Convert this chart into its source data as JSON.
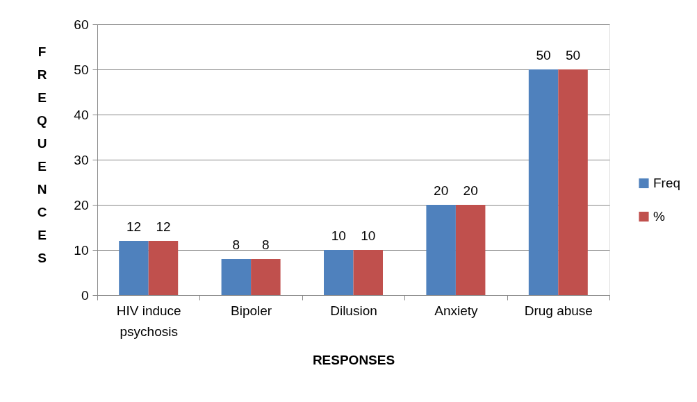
{
  "chart_data": {
    "type": "bar",
    "xlabel": "RESPONSES",
    "ylabel": "FREQUENCES",
    "categories": [
      "HIV induce psychosis",
      "Bipoler",
      "Dilusion",
      "Anxiety",
      "Drug abuse"
    ],
    "series": [
      {
        "name": "Freq",
        "color": "#4f81bd",
        "values": [
          12,
          8,
          10,
          20,
          50
        ]
      },
      {
        "name": "%",
        "color": "#c0504d",
        "values": [
          12,
          8,
          10,
          20,
          50
        ]
      }
    ],
    "ylim": [
      0,
      60
    ],
    "yticks": [
      0,
      10,
      20,
      30,
      40,
      50,
      60
    ],
    "grid": "y",
    "legend": "right",
    "data_labels": true
  }
}
